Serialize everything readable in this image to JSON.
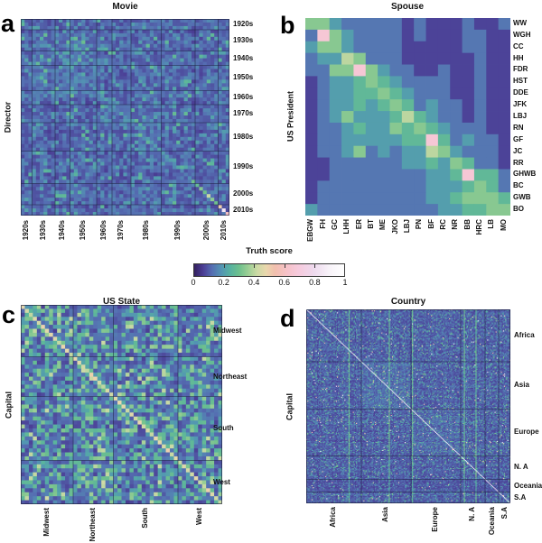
{
  "figure": {
    "background": "#ffffff",
    "text_color": "#111111"
  },
  "chart_data": {
    "type": "heatmap",
    "description": "Four similarity heatmap panels sharing one Truth score colorbar",
    "colorbar": {
      "label": "Truth score",
      "ticks": [
        "0",
        "0.2",
        "0.4",
        "0.6",
        "0.8",
        "1"
      ],
      "tick_values": [
        0,
        0.2,
        0.4,
        0.6,
        0.8,
        1
      ],
      "range": [
        0,
        1
      ],
      "stops": [
        [
          0.0,
          "#33205f"
        ],
        [
          0.06,
          "#4b3e95"
        ],
        [
          0.12,
          "#556fb2"
        ],
        [
          0.18,
          "#5394b3"
        ],
        [
          0.24,
          "#57b2a0"
        ],
        [
          0.3,
          "#6ec08d"
        ],
        [
          0.36,
          "#9ccf95"
        ],
        [
          0.42,
          "#ccdaa5"
        ],
        [
          0.48,
          "#ead7ad"
        ],
        [
          0.54,
          "#f2bfae"
        ],
        [
          0.62,
          "#f6c2c9"
        ],
        [
          0.7,
          "#f6cbde"
        ],
        [
          0.8,
          "#eedaee"
        ],
        [
          0.9,
          "#f8f3f9"
        ],
        [
          1.0,
          "#ffffff"
        ]
      ]
    },
    "panels": [
      {
        "id": "a",
        "letter": "a",
        "title": "Movie",
        "ylabel": "Director",
        "frame": true,
        "groups": [
          {
            "label": "1920s",
            "size": 3
          },
          {
            "label": "1930s",
            "size": 6
          },
          {
            "label": "1940s",
            "size": 4
          },
          {
            "label": "1950s",
            "size": 7
          },
          {
            "label": "1960s",
            "size": 4
          },
          {
            "label": "1970s",
            "size": 5
          },
          {
            "label": "1980s",
            "size": 8
          },
          {
            "label": "1990s",
            "size": 9
          },
          {
            "label": "2000s",
            "size": 6
          },
          {
            "label": "2010s",
            "size": 3
          }
        ],
        "gen": {
          "seed": 11,
          "levels": [
            0.085,
            0.12,
            0.155,
            0.2,
            0.26
          ],
          "weights": [
            0.38,
            0.34,
            0.18,
            0.07,
            0.03
          ],
          "row_jitter": 0.012,
          "col_jitter": 0.012,
          "hot_rects": [
            [
              3,
              21,
              3,
              21,
              0.018
            ],
            [
              22,
              36,
              22,
              36,
              0.012
            ]
          ],
          "diag": {
            "base": 0.17,
            "jitter": 0.05,
            "special": [
              [
                45,
                0.3
              ],
              [
                46,
                0.28
              ],
              [
                47,
                0.33
              ],
              [
                48,
                0.3
              ],
              [
                49,
                0.42
              ],
              [
                50,
                0.34
              ],
              [
                51,
                0.3
              ],
              [
                52,
                0.5
              ],
              [
                53,
                0.85
              ],
              [
                54,
                0.6
              ]
            ]
          }
        }
      },
      {
        "id": "b",
        "letter": "b",
        "title": "Spouse",
        "ylabel": "US President",
        "frame": false,
        "row_labels": [
          "WW",
          "WGH",
          "CC",
          "HH",
          "FDR",
          "HST",
          "DDE",
          "JFK",
          "LBJ",
          "RN",
          "GF",
          "JC",
          "RR",
          "GHWB",
          "BC",
          "GWB",
          "BO"
        ],
        "col_labels": [
          "EBGW",
          "FH",
          "GC",
          "LHH",
          "ER",
          "BT",
          "ME",
          "JKO",
          "LBJ",
          "PN",
          "BF",
          "RC",
          "NR",
          "BB",
          "HRC",
          "LB",
          "MO"
        ],
        "scale": 15,
        "matrix": [
          "55322222121112112",
          "2A532222121112211",
          "35532222111112211",
          "23365222111111211",
          "2255A532211211211",
          "12334543222211211",
          "12334454322211211",
          "12334345423221211",
          "12353334643221211",
          "12234335454322211",
          "1223333344A423221",
          "12235232336532221",
          "11222222334354221",
          "1122222222334A442",
          "12222222223334542",
          "12222222223345554",
          "32222222222334455"
        ]
      },
      {
        "id": "c",
        "letter": "c",
        "title": "US State",
        "ylabel": "Capital",
        "frame": true,
        "groups": [
          {
            "label": "Midwest",
            "size": 13
          },
          {
            "label": "Northeast",
            "size": 10
          },
          {
            "label": "South",
            "size": 16
          },
          {
            "label": "West",
            "size": 11
          }
        ],
        "gen": {
          "seed": 23,
          "levels": [
            0.09,
            0.125,
            0.2,
            0.27,
            0.33,
            0.4
          ],
          "weights": [
            0.24,
            0.3,
            0.2,
            0.15,
            0.08,
            0.03
          ],
          "row_jitter": 0.015,
          "col_jitter": 0.015,
          "hot_rects": [],
          "diag": {
            "base": 0.45,
            "jitter": 0.05,
            "special": []
          }
        }
      },
      {
        "id": "d",
        "letter": "d",
        "title": "Country",
        "ylabel": "Capital",
        "frame": true,
        "groups": [
          {
            "label": "Africa",
            "size": 52
          },
          {
            "label": "Asia",
            "size": 47
          },
          {
            "label": "Europe",
            "size": 47
          },
          {
            "label": "N. A",
            "size": 23
          },
          {
            "label": "Oceania",
            "size": 13
          },
          {
            "label": "S.A",
            "size": 11
          }
        ],
        "gen": {
          "seed": 5,
          "levels": [
            0.08,
            0.105,
            0.135,
            0.18,
            0.25,
            0.32,
            0.55,
            0.85
          ],
          "weights": [
            0.36,
            0.3,
            0.17,
            0.09,
            0.05,
            0.02,
            0.006,
            0.004
          ],
          "row_jitter": 0.01,
          "col_jitter": 0.012,
          "hot_rects": [
            [
              52,
              98,
              52,
              98,
              0.02
            ],
            [
              99,
              145,
              99,
              145,
              0.012
            ]
          ],
          "streak_cols": [
            40,
            78,
            100,
            149,
            160
          ],
          "dim_rows": [
            [
              169,
              181,
              0.72
            ]
          ],
          "diag": {
            "base": 0.92,
            "jitter": 0.04,
            "special": []
          }
        }
      }
    ]
  }
}
